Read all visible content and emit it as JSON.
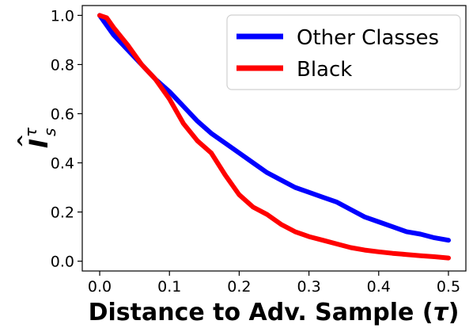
{
  "chart_data": {
    "type": "line",
    "title": "",
    "xlabel_main": "Distance to Adv. Sample (",
    "xlabel_symbol": "τ",
    "xlabel_close": ")",
    "ylabel_base": "I",
    "ylabel_sub": "s",
    "ylabel_sup": "τ",
    "xlim": [
      -0.025,
      0.525
    ],
    "ylim": [
      -0.04,
      1.04
    ],
    "x_ticks": [
      0.0,
      0.1,
      0.2,
      0.3,
      0.4,
      0.5
    ],
    "x_tick_labels": [
      "0.0",
      "0.1",
      "0.2",
      "0.3",
      "0.4",
      "0.5"
    ],
    "y_ticks": [
      0.0,
      0.2,
      0.4,
      0.6,
      0.8,
      1.0
    ],
    "y_tick_labels": [
      "0.0",
      "0.2",
      "0.4",
      "0.6",
      "0.8",
      "1.0"
    ],
    "grid": false,
    "legend_position": "top-right",
    "series": [
      {
        "name": "Other Classes",
        "color": "#0000ff",
        "x": [
          0.0,
          0.02,
          0.04,
          0.06,
          0.08,
          0.1,
          0.12,
          0.14,
          0.16,
          0.18,
          0.2,
          0.22,
          0.24,
          0.26,
          0.28,
          0.3,
          0.32,
          0.34,
          0.36,
          0.38,
          0.4,
          0.42,
          0.44,
          0.46,
          0.48,
          0.5
        ],
        "y": [
          1.0,
          0.92,
          0.86,
          0.8,
          0.74,
          0.69,
          0.63,
          0.57,
          0.52,
          0.48,
          0.44,
          0.4,
          0.36,
          0.33,
          0.3,
          0.28,
          0.26,
          0.24,
          0.21,
          0.18,
          0.16,
          0.14,
          0.12,
          0.11,
          0.095,
          0.085
        ]
      },
      {
        "name": "Black",
        "color": "#ff0000",
        "x": [
          0.0,
          0.01,
          0.02,
          0.04,
          0.06,
          0.08,
          0.1,
          0.12,
          0.14,
          0.16,
          0.18,
          0.2,
          0.22,
          0.24,
          0.26,
          0.28,
          0.3,
          0.32,
          0.34,
          0.36,
          0.38,
          0.4,
          0.42,
          0.44,
          0.46,
          0.48,
          0.5
        ],
        "y": [
          1.0,
          0.99,
          0.95,
          0.88,
          0.8,
          0.74,
          0.66,
          0.56,
          0.49,
          0.44,
          0.35,
          0.27,
          0.22,
          0.19,
          0.15,
          0.12,
          0.1,
          0.085,
          0.07,
          0.055,
          0.045,
          0.038,
          0.032,
          0.027,
          0.022,
          0.018,
          0.013
        ]
      }
    ]
  }
}
